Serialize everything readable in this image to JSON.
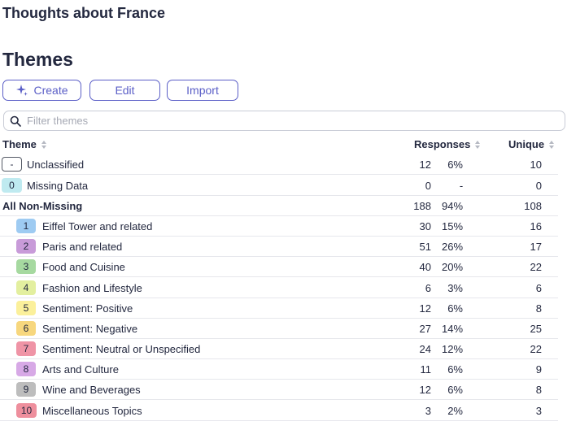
{
  "app": {
    "title": "Thoughts about France"
  },
  "section": {
    "title": "Themes"
  },
  "toolbar": {
    "create_label": "Create",
    "edit_label": "Edit",
    "import_label": "Import"
  },
  "filter": {
    "placeholder": "Filter themes",
    "value": ""
  },
  "table": {
    "headers": {
      "theme": "Theme",
      "responses": "Responses",
      "unique": "Unique"
    },
    "rows": [
      {
        "badge": "-",
        "label": "Unclassified",
        "count": "12",
        "pct": "6%",
        "unique": "10",
        "badge_color": "#ffffff",
        "badge_border": "#555a66",
        "indent": false,
        "bold": false
      },
      {
        "badge": "0",
        "label": "Missing Data",
        "count": "0",
        "pct": "-",
        "unique": "0",
        "badge_color": "#bfeaf0",
        "badge_border": "",
        "indent": false,
        "bold": false
      },
      {
        "badge": "",
        "label": "All Non-Missing",
        "count": "188",
        "pct": "94%",
        "unique": "108",
        "badge_color": "",
        "badge_border": "",
        "indent": false,
        "bold": true
      },
      {
        "badge": "1",
        "label": "Eiffel Tower and related",
        "count": "30",
        "pct": "15%",
        "unique": "16",
        "badge_color": "#9ecbf2",
        "badge_border": "",
        "indent": true,
        "bold": false
      },
      {
        "badge": "2",
        "label": "Paris and related",
        "count": "51",
        "pct": "26%",
        "unique": "17",
        "badge_color": "#c89bd9",
        "badge_border": "",
        "indent": true,
        "bold": false
      },
      {
        "badge": "3",
        "label": "Food and Cuisine",
        "count": "40",
        "pct": "20%",
        "unique": "22",
        "badge_color": "#a6d9a0",
        "badge_border": "",
        "indent": true,
        "bold": false
      },
      {
        "badge": "4",
        "label": "Fashion and Lifestyle",
        "count": "6",
        "pct": "3%",
        "unique": "6",
        "badge_color": "#e3ef9f",
        "badge_border": "",
        "indent": true,
        "bold": false
      },
      {
        "badge": "5",
        "label": "Sentiment: Positive",
        "count": "12",
        "pct": "6%",
        "unique": "8",
        "badge_color": "#fbf09b",
        "badge_border": "",
        "indent": true,
        "bold": false
      },
      {
        "badge": "6",
        "label": "Sentiment: Negative",
        "count": "27",
        "pct": "14%",
        "unique": "25",
        "badge_color": "#f7d77e",
        "badge_border": "",
        "indent": true,
        "bold": false
      },
      {
        "badge": "7",
        "label": "Sentiment: Neutral or Unspecified",
        "count": "24",
        "pct": "12%",
        "unique": "22",
        "badge_color": "#ef94a6",
        "badge_border": "",
        "indent": true,
        "bold": false
      },
      {
        "badge": "8",
        "label": "Arts and Culture",
        "count": "11",
        "pct": "6%",
        "unique": "9",
        "badge_color": "#d7a9e6",
        "badge_border": "",
        "indent": true,
        "bold": false
      },
      {
        "badge": "9",
        "label": "Wine and Beverages",
        "count": "12",
        "pct": "6%",
        "unique": "8",
        "badge_color": "#bdbdbd",
        "badge_border": "",
        "indent": true,
        "bold": false
      },
      {
        "badge": "10",
        "label": "Miscellaneous Topics",
        "count": "3",
        "pct": "2%",
        "unique": "3",
        "badge_color": "#ee8f9d",
        "badge_border": "",
        "indent": true,
        "bold": false
      }
    ]
  },
  "colors": {
    "accent": "#5b5fc7",
    "text": "#23283f",
    "border": "#c9ccd6"
  },
  "icons": {
    "create": "sparkle-icon",
    "filter": "search-icon",
    "sort": "sort-icon"
  }
}
